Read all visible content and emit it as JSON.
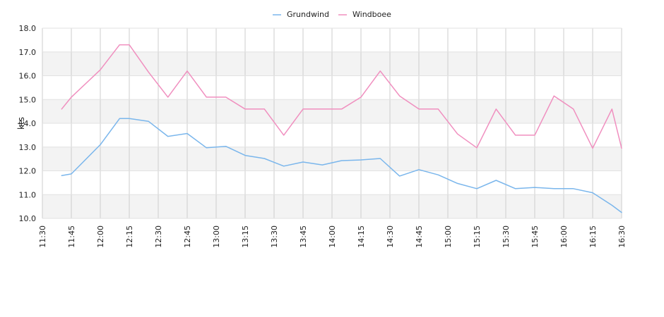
{
  "chart_data": {
    "type": "line",
    "ylabel": "kts",
    "ylim": [
      10.0,
      18.0
    ],
    "yticks": [
      "10.0",
      "11.0",
      "12.0",
      "13.0",
      "14.0",
      "15.0",
      "16.0",
      "17.0",
      "18.0"
    ],
    "xlim_minutes_label": [
      "11:30",
      "16:30"
    ],
    "xticks": [
      "11:30",
      "11:45",
      "12:00",
      "12:15",
      "12:30",
      "12:45",
      "13:00",
      "13:15",
      "13:30",
      "13:45",
      "14:00",
      "14:15",
      "14:30",
      "14:45",
      "15:00",
      "15:15",
      "15:30",
      "15:45",
      "16:00",
      "16:15",
      "16:30"
    ],
    "grid": true,
    "alternating_bands": true,
    "legend_position": "top-center",
    "series": [
      {
        "name": "Grundwind",
        "color": "#7ab6ec",
        "points": [
          [
            "11:40",
            11.8
          ],
          [
            "11:45",
            11.87
          ],
          [
            "12:00",
            13.1
          ],
          [
            "12:10",
            14.2
          ],
          [
            "12:15",
            14.2
          ],
          [
            "12:25",
            14.08
          ],
          [
            "12:35",
            13.45
          ],
          [
            "12:45",
            13.57
          ],
          [
            "12:55",
            12.97
          ],
          [
            "13:05",
            13.03
          ],
          [
            "13:15",
            12.65
          ],
          [
            "13:25",
            12.52
          ],
          [
            "13:35",
            12.2
          ],
          [
            "13:45",
            12.37
          ],
          [
            "13:55",
            12.25
          ],
          [
            "14:05",
            12.43
          ],
          [
            "14:15",
            12.46
          ],
          [
            "14:25",
            12.52
          ],
          [
            "14:35",
            11.78
          ],
          [
            "14:45",
            12.05
          ],
          [
            "14:55",
            11.83
          ],
          [
            "15:05",
            11.47
          ],
          [
            "15:15",
            11.25
          ],
          [
            "15:25",
            11.6
          ],
          [
            "15:35",
            11.25
          ],
          [
            "15:45",
            11.3
          ],
          [
            "15:55",
            11.25
          ],
          [
            "16:05",
            11.25
          ],
          [
            "16:15",
            11.08
          ],
          [
            "16:25",
            10.55
          ],
          [
            "16:30",
            10.25
          ]
        ]
      },
      {
        "name": "Windboee",
        "color": "#f08fbf",
        "points": [
          [
            "11:40",
            14.6
          ],
          [
            "11:45",
            15.1
          ],
          [
            "12:00",
            16.25
          ],
          [
            "12:10",
            17.3
          ],
          [
            "12:15",
            17.3
          ],
          [
            "12:25",
            16.15
          ],
          [
            "12:35",
            15.1
          ],
          [
            "12:45",
            16.2
          ],
          [
            "12:55",
            15.1
          ],
          [
            "13:05",
            15.1
          ],
          [
            "13:15",
            14.6
          ],
          [
            "13:25",
            14.6
          ],
          [
            "13:35",
            13.5
          ],
          [
            "13:45",
            14.6
          ],
          [
            "13:55",
            14.6
          ],
          [
            "14:05",
            14.6
          ],
          [
            "14:15",
            15.1
          ],
          [
            "14:25",
            16.2
          ],
          [
            "14:35",
            15.15
          ],
          [
            "14:45",
            14.6
          ],
          [
            "14:55",
            14.6
          ],
          [
            "15:05",
            13.55
          ],
          [
            "15:15",
            12.97
          ],
          [
            "15:25",
            14.6
          ],
          [
            "15:35",
            13.5
          ],
          [
            "15:45",
            13.5
          ],
          [
            "15:55",
            15.15
          ],
          [
            "16:05",
            14.6
          ],
          [
            "16:15",
            12.95
          ],
          [
            "16:25",
            14.6
          ],
          [
            "16:30",
            12.95
          ]
        ]
      }
    ]
  }
}
